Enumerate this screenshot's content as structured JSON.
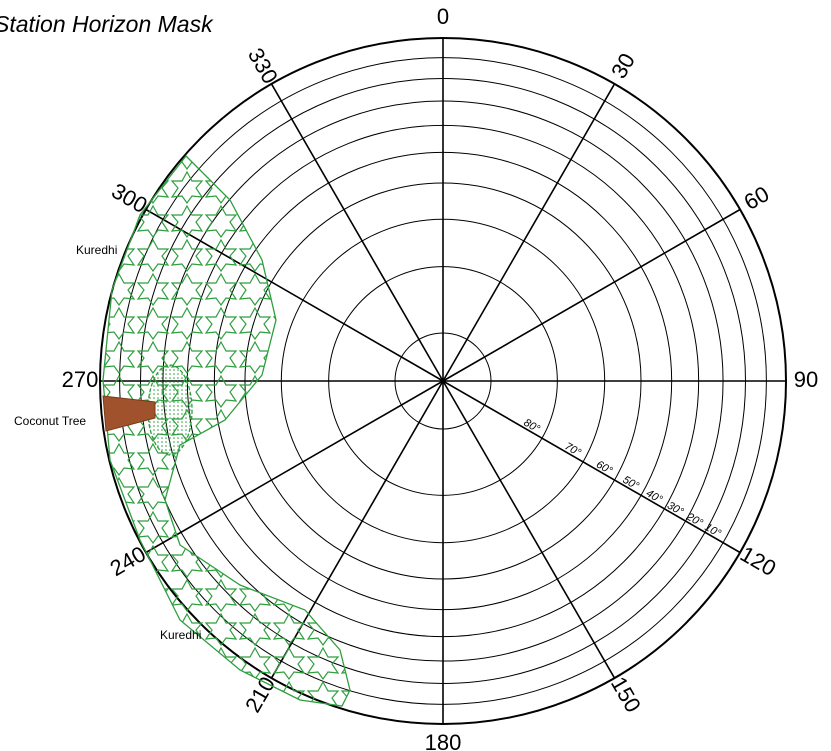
{
  "title": "Station Horizon Mask",
  "azimuth_labels": [
    0,
    30,
    60,
    90,
    120,
    150,
    180,
    210,
    240,
    270,
    300,
    330
  ],
  "elevation_labels": [
    {
      "value": 80,
      "label": "80°"
    },
    {
      "value": 70,
      "label": "70°"
    },
    {
      "value": 60,
      "label": "60°"
    },
    {
      "value": 50,
      "label": "50°"
    },
    {
      "value": 40,
      "label": "40°"
    },
    {
      "value": 30,
      "label": "30°"
    },
    {
      "value": 20,
      "label": "20°"
    },
    {
      "value": 10,
      "label": "10°"
    }
  ],
  "obstructions": [
    {
      "label": "Kuredhi"
    },
    {
      "label": "Coconut Tree"
    },
    {
      "label": "Kuredhi"
    }
  ]
}
